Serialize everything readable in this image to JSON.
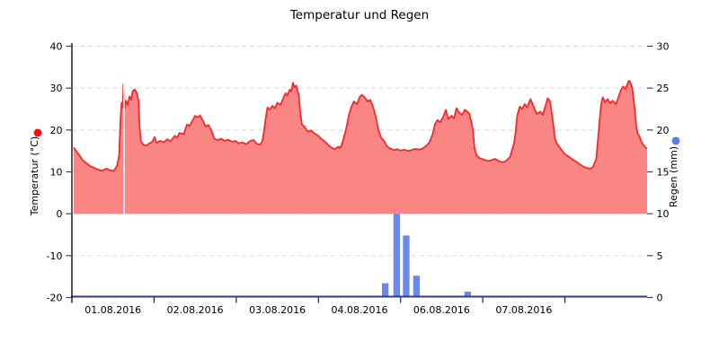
{
  "title": "Temperatur und Regen",
  "colors": {
    "temp_line": "#f42b2b",
    "temp_fill": "#f98585",
    "rain_bar": "#6b8ae8",
    "legend_red_dot": "#fb1010",
    "legend_blue_dot": "#5d7de9",
    "x_axis_line": "#2c3b8f",
    "y_axis_line": "#000000",
    "gridline": "#d9d9d9",
    "tick": "#444444",
    "gap_line": "#ffffff"
  },
  "chart_data": {
    "type": "combo",
    "title": "Temperatur und Regen",
    "x_axis": {
      "labels": [
        "01.08.2016",
        "02.08.2016",
        "03.08.2016",
        "04.08.2016",
        "06.08.2016",
        "07.08.2016"
      ],
      "tick_positions_days": [
        0,
        1,
        2,
        3,
        4,
        5,
        6
      ],
      "days_span": 7,
      "note_skipped_label": "05.08.2016 not shown"
    },
    "left_axis": {
      "label": "Temperatur (°C)",
      "ticks": [
        40,
        30,
        20,
        10,
        0,
        -10,
        -20
      ],
      "range": [
        -20,
        40
      ]
    },
    "right_axis": {
      "label": "Regen (mm)",
      "ticks": [
        30,
        25,
        20,
        15,
        10,
        5,
        0
      ],
      "range": [
        0,
        30
      ]
    },
    "grid": "dashed horizontal at every left-axis tick",
    "legend": [
      {
        "name": "Temperatur (°C)",
        "marker": "red-dot",
        "position": "left-of-plot"
      },
      {
        "name": "Regen (mm)",
        "marker": "blue-dot",
        "position": "right-of-plot"
      }
    ],
    "data_gap_x_day": 0.634,
    "series": [
      {
        "name": "Temperatur (°C)",
        "type": "area-line",
        "axis": "left",
        "x_unit": "days from 01.08.2016 00:00",
        "baseline": 0,
        "points": [
          [
            0.022,
            15.8
          ],
          [
            0.07,
            14.5
          ],
          [
            0.13,
            12.8
          ],
          [
            0.22,
            11.4
          ],
          [
            0.31,
            10.6
          ],
          [
            0.37,
            10.3
          ],
          [
            0.42,
            10.8
          ],
          [
            0.46,
            10.4
          ],
          [
            0.51,
            10.2
          ],
          [
            0.55,
            11.5
          ],
          [
            0.575,
            14.0
          ],
          [
            0.59,
            22.0
          ],
          [
            0.605,
            26.5
          ],
          [
            0.618,
            25.5
          ],
          [
            0.628,
            31.0
          ],
          [
            0.645,
            25.2
          ],
          [
            0.656,
            27.0
          ],
          [
            0.68,
            26.0
          ],
          [
            0.7,
            28.0
          ],
          [
            0.72,
            27.2
          ],
          [
            0.74,
            29.3
          ],
          [
            0.765,
            29.7
          ],
          [
            0.79,
            28.8
          ],
          [
            0.81,
            27.0
          ],
          [
            0.822,
            21.0
          ],
          [
            0.84,
            17.3
          ],
          [
            0.87,
            16.5
          ],
          [
            0.91,
            16.3
          ],
          [
            0.94,
            16.8
          ],
          [
            0.98,
            17.2
          ],
          [
            1.005,
            18.3
          ],
          [
            1.03,
            16.9
          ],
          [
            1.07,
            17.4
          ],
          [
            1.12,
            17.1
          ],
          [
            1.16,
            17.8
          ],
          [
            1.2,
            17.3
          ],
          [
            1.25,
            18.6
          ],
          [
            1.28,
            18.2
          ],
          [
            1.31,
            19.3
          ],
          [
            1.36,
            19.0
          ],
          [
            1.4,
            21.3
          ],
          [
            1.43,
            21.0
          ],
          [
            1.47,
            22.3
          ],
          [
            1.5,
            23.4
          ],
          [
            1.53,
            23.0
          ],
          [
            1.56,
            23.5
          ],
          [
            1.6,
            22.0
          ],
          [
            1.63,
            20.8
          ],
          [
            1.66,
            21.2
          ],
          [
            1.7,
            19.8
          ],
          [
            1.73,
            18.0
          ],
          [
            1.77,
            17.6
          ],
          [
            1.82,
            17.9
          ],
          [
            1.86,
            17.4
          ],
          [
            1.9,
            17.7
          ],
          [
            1.95,
            17.2
          ],
          [
            1.99,
            17.4
          ],
          [
            2.03,
            16.8
          ],
          [
            2.08,
            17.0
          ],
          [
            2.12,
            16.6
          ],
          [
            2.17,
            17.4
          ],
          [
            2.21,
            17.6
          ],
          [
            2.25,
            16.7
          ],
          [
            2.29,
            16.5
          ],
          [
            2.32,
            17.5
          ],
          [
            2.34,
            20.0
          ],
          [
            2.36,
            23.0
          ],
          [
            2.38,
            25.4
          ],
          [
            2.41,
            24.8
          ],
          [
            2.44,
            25.8
          ],
          [
            2.47,
            25.2
          ],
          [
            2.5,
            26.5
          ],
          [
            2.54,
            26.0
          ],
          [
            2.57,
            27.5
          ],
          [
            2.6,
            28.8
          ],
          [
            2.62,
            28.2
          ],
          [
            2.65,
            29.6
          ],
          [
            2.67,
            29.2
          ],
          [
            2.69,
            31.3
          ],
          [
            2.71,
            30.2
          ],
          [
            2.73,
            30.6
          ],
          [
            2.76,
            28.5
          ],
          [
            2.78,
            24.0
          ],
          [
            2.8,
            21.2
          ],
          [
            2.83,
            20.8
          ],
          [
            2.87,
            19.6
          ],
          [
            2.91,
            19.9
          ],
          [
            2.95,
            19.2
          ],
          [
            3.0,
            18.6
          ],
          [
            3.04,
            17.8
          ],
          [
            3.08,
            17.2
          ],
          [
            3.13,
            16.2
          ],
          [
            3.17,
            15.7
          ],
          [
            3.2,
            15.4
          ],
          [
            3.24,
            16.0
          ],
          [
            3.27,
            15.8
          ],
          [
            3.3,
            17.5
          ],
          [
            3.34,
            20.5
          ],
          [
            3.37,
            23.5
          ],
          [
            3.4,
            25.5
          ],
          [
            3.43,
            26.8
          ],
          [
            3.47,
            26.2
          ],
          [
            3.5,
            27.8
          ],
          [
            3.53,
            28.4
          ],
          [
            3.57,
            27.6
          ],
          [
            3.6,
            26.8
          ],
          [
            3.63,
            27.2
          ],
          [
            3.66,
            25.8
          ],
          [
            3.7,
            23.0
          ],
          [
            3.73,
            20.0
          ],
          [
            3.76,
            18.2
          ],
          [
            3.8,
            17.4
          ],
          [
            3.83,
            16.2
          ],
          [
            3.87,
            15.6
          ],
          [
            3.92,
            15.2
          ],
          [
            3.96,
            15.4
          ],
          [
            4.0,
            15.1
          ],
          [
            4.05,
            15.3
          ],
          [
            4.09,
            15.0
          ],
          [
            4.13,
            15.2
          ],
          [
            4.18,
            15.5
          ],
          [
            4.22,
            15.3
          ],
          [
            4.27,
            15.6
          ],
          [
            4.31,
            16.2
          ],
          [
            4.35,
            17.0
          ],
          [
            4.39,
            19.0
          ],
          [
            4.42,
            21.5
          ],
          [
            4.45,
            22.4
          ],
          [
            4.48,
            21.8
          ],
          [
            4.52,
            23.2
          ],
          [
            4.55,
            24.8
          ],
          [
            4.58,
            22.6
          ],
          [
            4.62,
            23.4
          ],
          [
            4.65,
            22.8
          ],
          [
            4.68,
            25.2
          ],
          [
            4.71,
            24.2
          ],
          [
            4.75,
            23.6
          ],
          [
            4.78,
            24.8
          ],
          [
            4.81,
            24.4
          ],
          [
            4.84,
            23.8
          ],
          [
            4.88,
            20.0
          ],
          [
            4.9,
            15.5
          ],
          [
            4.93,
            13.8
          ],
          [
            4.97,
            13.2
          ],
          [
            5.02,
            12.9
          ],
          [
            5.06,
            12.6
          ],
          [
            5.11,
            12.8
          ],
          [
            5.15,
            13.1
          ],
          [
            5.2,
            12.5
          ],
          [
            5.24,
            12.3
          ],
          [
            5.28,
            12.6
          ],
          [
            5.33,
            13.5
          ],
          [
            5.36,
            15.5
          ],
          [
            5.38,
            16.8
          ],
          [
            5.4,
            19.5
          ],
          [
            5.42,
            23.5
          ],
          [
            5.45,
            25.6
          ],
          [
            5.48,
            25.0
          ],
          [
            5.51,
            26.2
          ],
          [
            5.54,
            25.4
          ],
          [
            5.58,
            27.4
          ],
          [
            5.61,
            26.0
          ],
          [
            5.64,
            24.6
          ],
          [
            5.66,
            23.8
          ],
          [
            5.7,
            24.4
          ],
          [
            5.73,
            23.6
          ],
          [
            5.76,
            25.5
          ],
          [
            5.79,
            27.6
          ],
          [
            5.82,
            26.8
          ],
          [
            5.85,
            22.5
          ],
          [
            5.88,
            17.8
          ],
          [
            5.91,
            16.5
          ],
          [
            5.96,
            15.2
          ],
          [
            6.0,
            14.2
          ],
          [
            6.05,
            13.6
          ],
          [
            6.09,
            13.0
          ],
          [
            6.14,
            12.4
          ],
          [
            6.18,
            11.8
          ],
          [
            6.22,
            11.3
          ],
          [
            6.27,
            10.9
          ],
          [
            6.31,
            10.8
          ],
          [
            6.34,
            11.2
          ],
          [
            6.38,
            13.0
          ],
          [
            6.4,
            17.0
          ],
          [
            6.42,
            22.0
          ],
          [
            6.44,
            26.0
          ],
          [
            6.46,
            27.8
          ],
          [
            6.49,
            26.6
          ],
          [
            6.52,
            27.4
          ],
          [
            6.55,
            26.4
          ],
          [
            6.58,
            27.0
          ],
          [
            6.62,
            26.2
          ],
          [
            6.65,
            27.8
          ],
          [
            6.68,
            29.5
          ],
          [
            6.71,
            30.4
          ],
          [
            6.74,
            29.8
          ],
          [
            6.76,
            31.0
          ],
          [
            6.78,
            31.8
          ],
          [
            6.8,
            31.2
          ],
          [
            6.82,
            30.0
          ],
          [
            6.85,
            25.0
          ],
          [
            6.87,
            20.5
          ],
          [
            6.89,
            19.0
          ],
          [
            6.91,
            18.3
          ],
          [
            6.93,
            17.2
          ],
          [
            6.96,
            16.3
          ],
          [
            6.98,
            15.8
          ],
          [
            7.0,
            15.6
          ]
        ]
      },
      {
        "name": "Regen (mm)",
        "type": "bar",
        "axis": "right",
        "bar_width_days": 0.08,
        "bars": [
          {
            "d": 3.773,
            "mm": 1.7
          },
          {
            "d": 3.912,
            "mm": 10.0
          },
          {
            "d": 4.028,
            "mm": 7.4
          },
          {
            "d": 4.153,
            "mm": 2.6
          },
          {
            "d": 4.776,
            "mm": 0.7
          }
        ]
      }
    ]
  }
}
